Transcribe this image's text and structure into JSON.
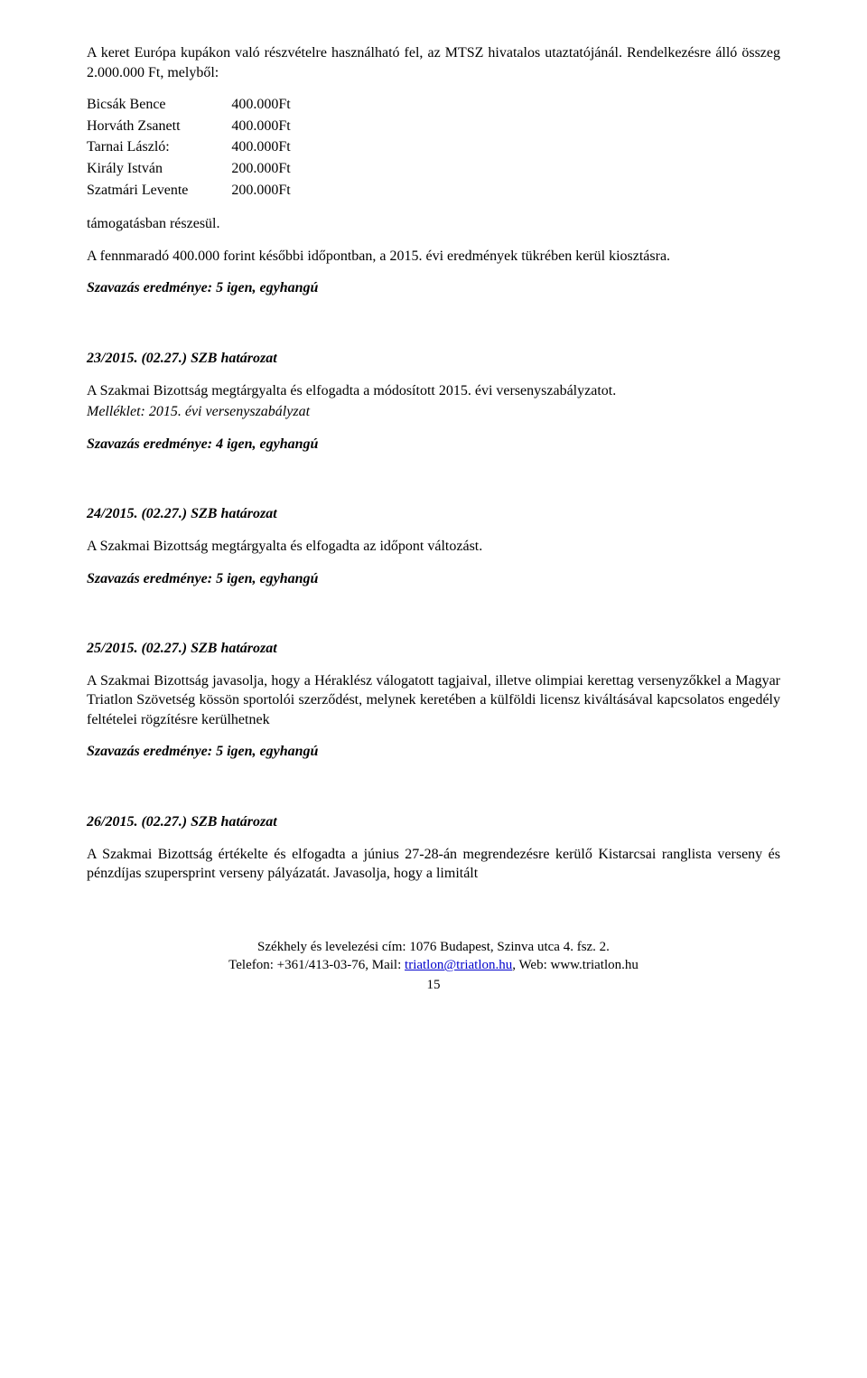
{
  "intro": {
    "line1": "A keret Európa kupákon való részvételre használható fel, az MTSZ hivatalos utaztatójánál. Rendelkezésre álló összeg 2.000.000 Ft, melyből:"
  },
  "allocations": [
    {
      "name": "Bicsák Bence",
      "amount": "400.000Ft"
    },
    {
      "name": "Horváth Zsanett",
      "amount": "400.000Ft"
    },
    {
      "name": "Tarnai László:",
      "amount": "400.000Ft"
    },
    {
      "name": "Király István",
      "amount": "200.000Ft"
    },
    {
      "name": "Szatmári Levente",
      "amount": "200.000Ft"
    }
  ],
  "support_line": "támogatásban részesül.",
  "remainder": "A fennmaradó 400.000 forint későbbi időpontban, a 2015. évi eredmények tükrében kerül kiosztásra.",
  "vote5": "Szavazás eredménye: 5 igen, egyhangú",
  "vote4": "Szavazás eredménye: 4 igen, egyhangú",
  "res23": {
    "title": "23/2015. (02.27.) SZB határozat",
    "body": "A Szakmai Bizottság megtárgyalta és elfogadta a módosított 2015. évi versenyszabályzatot.",
    "attachment": "Melléklet: 2015. évi versenyszabályzat"
  },
  "res24": {
    "title": "24/2015. (02.27.) SZB határozat",
    "body": "A Szakmai Bizottság megtárgyalta és elfogadta az időpont változást."
  },
  "res25": {
    "title": "25/2015. (02.27.) SZB határozat",
    "body": "A Szakmai Bizottság javasolja, hogy a Héraklész válogatott tagjaival, illetve olimpiai kerettag versenyzőkkel a Magyar Triatlon Szövetség kössön sportolói szerződést, melynek keretében a külföldi licensz kiváltásával kapcsolatos engedély feltételei rögzítésre kerülhetnek"
  },
  "res26": {
    "title": "26/2015. (02.27.) SZB határozat",
    "body": "A Szakmai Bizottság értékelte és elfogadta a június 27-28-án megrendezésre kerülő Kistarcsai ranglista verseny és pénzdíjas szupersprint verseny pályázatát. Javasolja, hogy a limitált"
  },
  "footer": {
    "address": "Székhely és levelezési cím: 1076 Budapest, Szinva utca 4. fsz. 2.",
    "contact_prefix": "Telefon: +361/413-03-76, Mail: ",
    "email": "triatlon@triatlon.hu",
    "contact_suffix": ", Web: www.triatlon.hu",
    "page_number": "15"
  }
}
